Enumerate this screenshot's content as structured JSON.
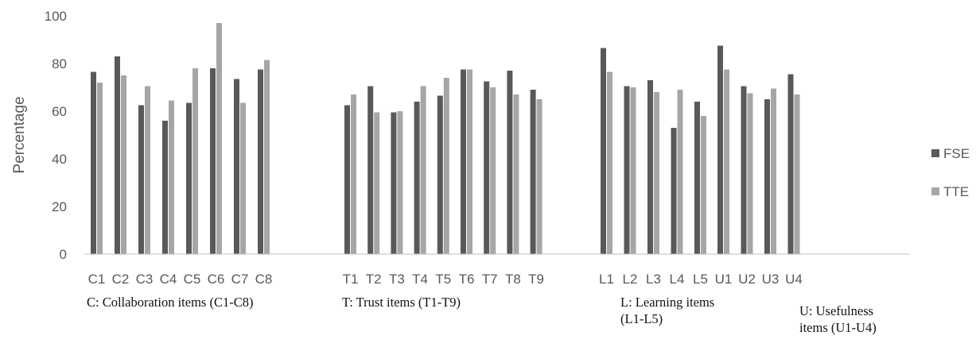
{
  "chart_data": {
    "type": "bar",
    "title": "",
    "xlabel": "",
    "ylabel": "Percentage",
    "ylim": [
      0,
      100
    ],
    "yticks": [
      0,
      20,
      40,
      60,
      80,
      100
    ],
    "grid": false,
    "legend_position": "right",
    "colors": {
      "FSE": "#595959",
      "TTE": "#a6a6a6",
      "axis": "#bfbfbf"
    },
    "categories": [
      "C1",
      "C2",
      "C3",
      "C4",
      "C5",
      "C6",
      "C7",
      "C8",
      "T1",
      "T2",
      "T3",
      "T4",
      "T5",
      "T6",
      "T7",
      "T8",
      "T9",
      "L1",
      "L2",
      "L3",
      "L4",
      "L5",
      "U1",
      "U2",
      "U3",
      "U4"
    ],
    "series": [
      {
        "name": "FSE",
        "values": [
          76.5,
          83,
          62.5,
          56,
          63.5,
          78,
          73.5,
          77.5,
          62.5,
          70.5,
          59.5,
          64,
          66.5,
          77.5,
          72.5,
          77,
          69,
          86.5,
          70.5,
          73,
          53,
          64,
          87.5,
          70.5,
          65,
          75.5
        ]
      },
      {
        "name": "TTE",
        "values": [
          72,
          75,
          70.5,
          64.5,
          78,
          97,
          63.5,
          81.5,
          67,
          59.5,
          60,
          70.5,
          74,
          77.5,
          70,
          67,
          65,
          76.5,
          70,
          68,
          69,
          58,
          77.5,
          67.5,
          69.5,
          67
        ]
      }
    ],
    "groups": [
      {
        "caption_lines": [
          "C: Collaboration items (C1-C8)"
        ],
        "count": 8
      },
      {
        "caption_lines": [
          "T: Trust items (T1-T9)"
        ],
        "count": 9
      },
      {
        "caption_lines": [
          "L: Learning items",
          "(L1-L5)"
        ],
        "count": 5
      },
      {
        "caption_lines": [
          "U: Usefulness",
          "items (U1-U4)"
        ],
        "count": 4
      }
    ]
  }
}
